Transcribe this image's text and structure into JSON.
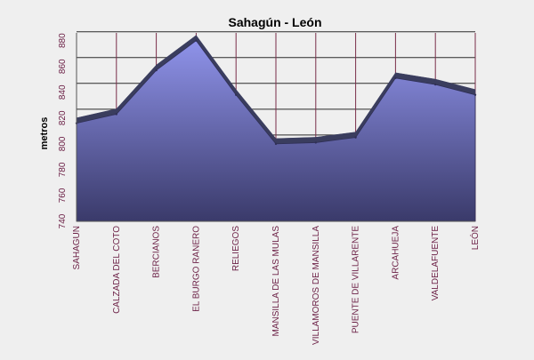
{
  "chart_data": {
    "type": "area",
    "title": "Sahagún - León",
    "xlabel": "",
    "ylabel": "metros",
    "categories": [
      "SAHAGUN",
      "CALZADA DEL COTO",
      "BERCIANOS",
      "EL BURGO RANERO",
      "RELIEGOS",
      "MANSILLA DE LAS MULAS",
      "VILLAMOROS DE MANSILLA",
      "PUENTE DE VILLARENTE",
      "ARCAHUEJA",
      "VALDELAFUENTE",
      "LEÓN"
    ],
    "series": [
      {
        "name": "",
        "values": [
          816,
          823,
          857,
          880,
          838,
          800,
          801,
          805,
          851,
          846,
          838
        ]
      }
    ],
    "yticks": [
      740,
      760,
      780,
      800,
      820,
      840,
      860,
      880
    ],
    "ylim": [
      740,
      886
    ],
    "grid": true,
    "legend": "none",
    "colors": {
      "area_top": "#8f93ea",
      "area_bottom": "#3a3a6a",
      "ridge": "#3a3d5e",
      "category_gridline": "#7a2e4a",
      "value_gridline": "#2b2b2b",
      "tick_label": "#6b1f45",
      "title": "#000000"
    }
  }
}
